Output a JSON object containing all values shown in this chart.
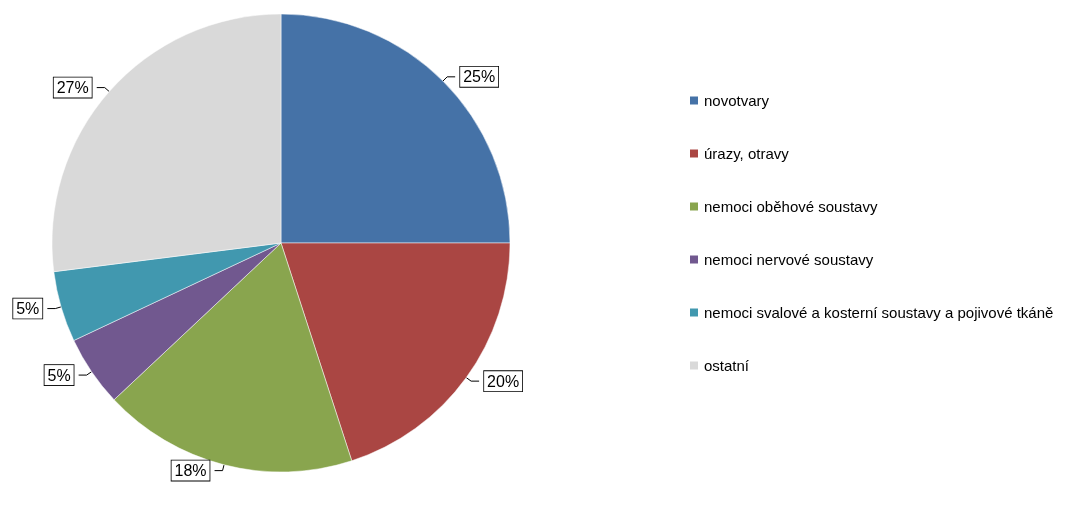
{
  "chart_data": {
    "type": "pie",
    "categories": [
      "novotvary",
      "úrazy, otravy",
      "nemoci oběhové soustavy",
      "nemoci nervové soustavy",
      "nemoci svalové a kosterní soustavy a pojivové tkáně",
      "ostatní"
    ],
    "values": [
      25,
      20,
      18,
      5,
      5,
      27
    ],
    "value_labels": [
      "25%",
      "20%",
      "18%",
      "5%",
      "5%",
      "27%"
    ],
    "colors": [
      "#4572a7",
      "#aa4643",
      "#89a54e",
      "#71588f",
      "#4198af",
      "#d9d9d9"
    ],
    "legend": "right"
  }
}
